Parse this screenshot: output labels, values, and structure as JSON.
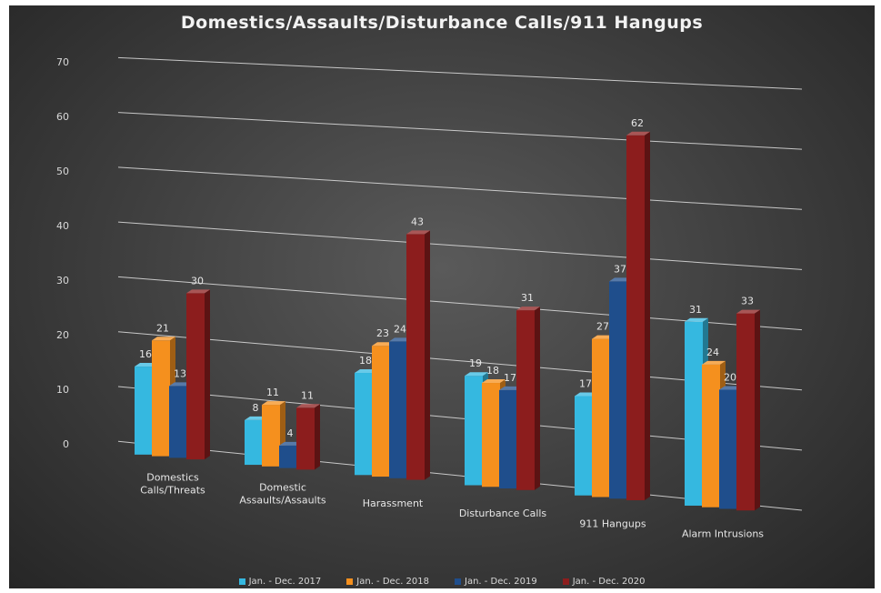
{
  "chart_data": {
    "type": "bar",
    "title": "Domestics/Assaults/Disturbance Calls/911 Hangups",
    "categories": [
      "Domestics Calls/Threats",
      "Domestic Assaults/Assaults",
      "Harassment",
      "Disturbance Calls",
      "911 Hangups",
      "Alarm Intrusions"
    ],
    "category_lines": [
      [
        "Domestics",
        "Calls/Threats"
      ],
      [
        "Domestic",
        "Assaults/Assaults"
      ],
      [
        "Harassment"
      ],
      [
        "Disturbance Calls"
      ],
      [
        "911 Hangups"
      ],
      [
        "Alarm Intrusions"
      ]
    ],
    "series": [
      {
        "name": "Jan. - Dec. 2017",
        "color": "#35b8e0",
        "values": [
          16,
          8,
          18,
          19,
          17,
          31
        ]
      },
      {
        "name": "Jan. - Dec. 2018",
        "color": "#f5901e",
        "values": [
          21,
          11,
          23,
          18,
          27,
          24
        ]
      },
      {
        "name": "Jan. - Dec. 2019",
        "color": "#1f4e8c",
        "values": [
          13,
          4,
          24,
          17,
          37,
          20
        ]
      },
      {
        "name": "Jan. - Dec. 2020",
        "color": "#8c1d1d",
        "values": [
          30,
          11,
          43,
          31,
          62,
          33
        ]
      }
    ],
    "yticks": [
      0,
      10,
      20,
      30,
      40,
      50,
      60,
      70
    ],
    "ylim": [
      0,
      70
    ],
    "grid": true,
    "legend_position": "bottom",
    "style": "3d-perspective"
  }
}
